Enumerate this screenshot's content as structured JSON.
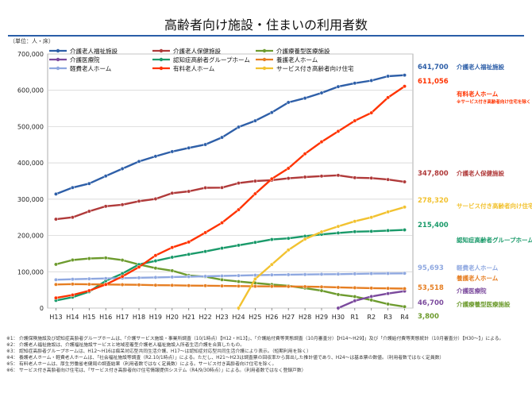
{
  "title": "高齢者向け施設・住まいの利用者数",
  "unit_label": "（単位：人・床）",
  "chart_data": {
    "type": "line",
    "x": [
      "H13",
      "H14",
      "H15",
      "H16",
      "H17",
      "H18",
      "H19",
      "H20",
      "H21",
      "H22",
      "H23",
      "H24",
      "H25",
      "H26",
      "H27",
      "H28",
      "H29",
      "H30",
      "R1",
      "R2",
      "R3",
      "R4"
    ],
    "ylim": [
      0,
      700000
    ],
    "yticks": [
      0,
      100000,
      200000,
      300000,
      400000,
      500000,
      600000,
      700000
    ],
    "ytick_labels": [
      "0",
      "100,000",
      "200,000",
      "300,000",
      "400,000",
      "500,000",
      "600,000",
      "700,000"
    ],
    "grid": true,
    "legend_position": "top",
    "series": [
      {
        "name": "介護老人福祉施設",
        "color": "#2e5fa8",
        "values": [
          314192,
          331900,
          342900,
          363800,
          383900,
          403900,
          418100,
          431100,
          441200,
          450600,
          470200,
          498700,
          516000,
          538900,
          566600,
          578300,
          592800,
          610000,
          619600,
          626800,
          638800,
          641700
        ],
        "end_label": "641,700",
        "end_name": "介護老人福祉施設"
      },
      {
        "name": "介護老人保健施設",
        "color": "#b03a3a",
        "values": [
          244847,
          250000,
          266700,
          280400,
          284900,
          294500,
          300800,
          316600,
          321500,
          331400,
          331900,
          344300,
          349900,
          352300,
          357500,
          361000,
          363600,
          365800,
          359200,
          358100,
          354100,
          347800
        ],
        "end_label": "347,800",
        "end_name": "介護老人保健施設"
      },
      {
        "name": "介護療養型医療施設",
        "color": "#6d9b2e",
        "values": [
          120422,
          132450,
          136500,
          138200,
          132100,
          120000,
          110000,
          103000,
          90000,
          86300,
          78000,
          73000,
          69000,
          65000,
          61300,
          55000,
          48000,
          37300,
          31600,
          22000,
          11000,
          3800
        ],
        "end_label": "3,800",
        "end_name": "介護療養型医療施設"
      },
      {
        "name": "介護医療院",
        "color": "#7b4a9d",
        "values": [
          null,
          null,
          null,
          null,
          null,
          null,
          null,
          null,
          null,
          null,
          null,
          null,
          null,
          null,
          null,
          null,
          null,
          0,
          20000,
          32000,
          40000,
          46700
        ],
        "end_label": "46,700",
        "end_name": "介護医療院"
      },
      {
        "name": "認知症高齢者グループホーム",
        "color": "#1a9a6a",
        "values": [
          21000,
          30000,
          45000,
          75000,
          95000,
          120000,
          130000,
          140000,
          148000,
          156000,
          165000,
          173000,
          181000,
          189000,
          192000,
          198000,
          203000,
          207000,
          210500,
          211500,
          213600,
          215400
        ],
        "end_label": "215,400",
        "end_name": "認知症高齢者グループホーム"
      },
      {
        "name": "養護老人ホーム",
        "color": "#e67e22",
        "values": [
          65000,
          66000,
          65500,
          65000,
          64500,
          64000,
          63000,
          62700,
          62000,
          61700,
          61000,
          60500,
          60000,
          59800,
          59400,
          59000,
          58400,
          57000,
          56000,
          55000,
          54300,
          53518
        ],
        "end_label": "53,518",
        "end_name": "養護老人ホーム"
      },
      {
        "name": "軽費老人ホーム",
        "color": "#8fa8e0",
        "values": [
          78000,
          79500,
          80500,
          81500,
          82500,
          83500,
          84500,
          85500,
          86500,
          87500,
          88500,
          89500,
          90500,
          91500,
          92100,
          92500,
          93200,
          93500,
          94300,
          95000,
          95300,
          95693
        ],
        "end_label": "95,693",
        "end_name": "軽費老人ホーム"
      },
      {
        "name": "有料老人ホーム",
        "color": "#ff3300",
        "values": [
          28000,
          36000,
          48000,
          65000,
          87000,
          113000,
          145000,
          167000,
          182000,
          208000,
          235000,
          271000,
          315000,
          356000,
          385000,
          425000,
          458000,
          487000,
          516000,
          538000,
          580000,
          611056
        ],
        "end_label": "611,056",
        "end_name": "有料老人ホーム",
        "end_note": "※サービス付き高齢者向け住宅を除く"
      },
      {
        "name": "サービス付き高齢者向け住宅",
        "color": "#f2c230",
        "values": [
          null,
          null,
          null,
          null,
          null,
          null,
          null,
          null,
          null,
          null,
          null,
          0,
          80000,
          120000,
          160000,
          190000,
          210000,
          225000,
          239000,
          250000,
          265000,
          278320
        ],
        "end_label": "278,320",
        "end_name": "サービス付き高齢者向け住宅"
      }
    ]
  },
  "notes": [
    {
      "mark": "※1：",
      "text": "介護保険施設及び認知症高齢者グループホームは、「介護サービス施設・事業所調査（10/1時点）【H12・H13】」、「介護給付費等実態調査（10月審査分）【H14〜H29】」及び「介護給付費等実態統計（10月審査分）【H30〜】」による。"
    },
    {
      "mark": "※2：",
      "text": "介護老人福祉施設は、介護福祉施設サービスと地域密着型介護老人福祉施設入所者生活介護を合算したもの。"
    },
    {
      "mark": "※3：",
      "text": "認知症高齢者グループホームは、H12〜H16は痴呆対応型共同生活介護、H17〜は認知症対応型共同生活介護により表示。（短期利用を除く）"
    },
    {
      "mark": "※4：",
      "text": "養護老人ホーム・軽費老人ホームは、「社会福祉施設等調査（R2.10/1時点）」による。ただし、H21〜H23は調査票の回収率から算出した推計値であり、H24〜は基本票の数値。（利用者数ではなく定員数）"
    },
    {
      "mark": "※5：",
      "text": "有料老人ホームは、厚生労働省老健局の調査結果（利用者数ではなく定員数）による。サービス付き高齢者向け住宅を除く。"
    },
    {
      "mark": "※6：",
      "text": "サービス付き高齢者向け住宅は、「サービス付き高齢者向け住宅情報提供システム（R4/9/30時点）」による。（利用者数ではなく登録戸数）"
    }
  ]
}
